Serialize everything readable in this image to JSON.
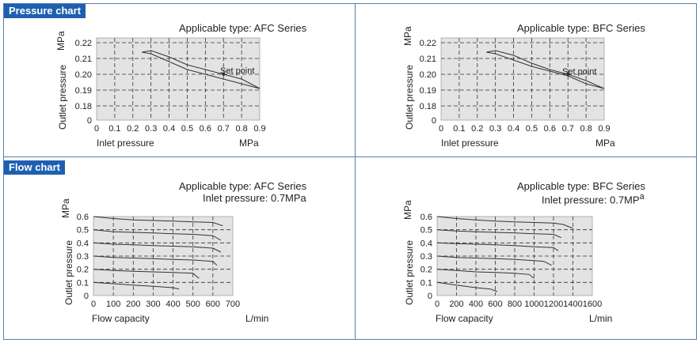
{
  "sections": {
    "pressure_label": "Pressure chart",
    "flow_label": "Flow chart"
  },
  "colors": {
    "section_bg": "#1f5fb0",
    "border": "#5a7ea8",
    "plot_bg": "#e3e3e3",
    "curve": "#333333"
  },
  "chart_data": [
    {
      "type": "line",
      "title": "Applicable type: AFC Series",
      "xlabel": "Inlet pressure",
      "xunit": "MPa",
      "ylabel": "Outlet pressure",
      "yunit": "MPa",
      "xticks": [
        "0",
        "0.1",
        "0.2",
        "0.3",
        "0.4",
        "0.5",
        "0.6",
        "0.7",
        "0.8",
        "0.9"
      ],
      "yticks": [
        "0",
        "0.18",
        "0.19",
        "0.20",
        "0.21",
        "0.22"
      ],
      "xlim": [
        0,
        0.9
      ],
      "annotation": "Set point",
      "series": [
        {
          "x": [
            0.25,
            0.3,
            0.4,
            0.5,
            0.6,
            0.7,
            0.8,
            0.9
          ],
          "y": [
            0.214,
            0.215,
            0.211,
            0.206,
            0.203,
            0.2,
            0.197,
            0.191
          ]
        },
        {
          "x": [
            0.25,
            0.3,
            0.4,
            0.5,
            0.6,
            0.7,
            0.8,
            0.9
          ],
          "y": [
            0.214,
            0.213,
            0.208,
            0.203,
            0.2,
            0.197,
            0.194,
            0.191
          ]
        }
      ]
    },
    {
      "type": "line",
      "title": "Applicable type: BFC Series",
      "xlabel": "Inlet pressure",
      "xunit": "MPa",
      "ylabel": "Outlet pressure",
      "yunit": "MPa",
      "xticks": [
        "0",
        "0.1",
        "0.2",
        "0.3",
        "0.4",
        "0.5",
        "0.6",
        "0.7",
        "0.8",
        "0.9"
      ],
      "yticks": [
        "0",
        "0.18",
        "0.19",
        "0.20",
        "0.21",
        "0.22"
      ],
      "xlim": [
        0,
        0.9
      ],
      "annotation": "Set point",
      "series": [
        {
          "x": [
            0.25,
            0.3,
            0.4,
            0.5,
            0.6,
            0.7,
            0.8,
            0.9
          ],
          "y": [
            0.214,
            0.215,
            0.212,
            0.207,
            0.203,
            0.2,
            0.196,
            0.191
          ]
        },
        {
          "x": [
            0.25,
            0.3,
            0.4,
            0.5,
            0.6,
            0.7,
            0.8,
            0.9
          ],
          "y": [
            0.214,
            0.213,
            0.209,
            0.205,
            0.202,
            0.199,
            0.194,
            0.191
          ]
        }
      ]
    },
    {
      "type": "line",
      "title": "Applicable type: AFC Series",
      "subtitle": "Inlet pressure: 0.7MPa",
      "xlabel": "Flow capacity",
      "xunit": "L/min",
      "ylabel": "Outlet pressure",
      "yunit": "MPa",
      "xticks": [
        "0",
        "100",
        "200",
        "300",
        "400",
        "500",
        "600",
        "700"
      ],
      "yticks": [
        "0",
        "0.1",
        "0.2",
        "0.3",
        "0.4",
        "0.5",
        "0.6"
      ],
      "xlim": [
        0,
        700
      ],
      "ylim": [
        0,
        0.6
      ],
      "series": [
        {
          "x": [
            0,
            100,
            200,
            300,
            400,
            500,
            600,
            650
          ],
          "y": [
            0.6,
            0.585,
            0.575,
            0.57,
            0.565,
            0.56,
            0.555,
            0.53
          ]
        },
        {
          "x": [
            0,
            100,
            200,
            300,
            400,
            500,
            600,
            640
          ],
          "y": [
            0.5,
            0.485,
            0.48,
            0.475,
            0.47,
            0.465,
            0.455,
            0.42
          ]
        },
        {
          "x": [
            0,
            100,
            200,
            300,
            400,
            500,
            600,
            640
          ],
          "y": [
            0.4,
            0.39,
            0.385,
            0.38,
            0.375,
            0.37,
            0.36,
            0.33
          ]
        },
        {
          "x": [
            0,
            100,
            200,
            300,
            400,
            500,
            600,
            620
          ],
          "y": [
            0.3,
            0.29,
            0.285,
            0.28,
            0.275,
            0.27,
            0.26,
            0.23
          ]
        },
        {
          "x": [
            0,
            100,
            200,
            300,
            400,
            500,
            530
          ],
          "y": [
            0.2,
            0.19,
            0.185,
            0.18,
            0.175,
            0.17,
            0.13
          ]
        },
        {
          "x": [
            0,
            100,
            200,
            300,
            400,
            430
          ],
          "y": [
            0.1,
            0.09,
            0.08,
            0.07,
            0.06,
            0.05
          ]
        }
      ]
    },
    {
      "type": "line",
      "title": "Applicable type: BFC Series",
      "subtitle": "Inlet pressure: 0.7MP",
      "subtitle_sup": "a",
      "xlabel": "Flow capacity",
      "xunit": "L/min",
      "ylabel": "Outlet pressure",
      "yunit": "MPa",
      "xticks": [
        "0",
        "200",
        "400",
        "600",
        "800",
        "1000",
        "1200",
        "1400",
        "1600"
      ],
      "yticks": [
        "0",
        "0.1",
        "0.2",
        "0.3",
        "0.4",
        "0.5",
        "0.6"
      ],
      "xlim": [
        0,
        1600
      ],
      "ylim": [
        0,
        0.6
      ],
      "series": [
        {
          "x": [
            0,
            200,
            400,
            600,
            800,
            1000,
            1200,
            1300,
            1400
          ],
          "y": [
            0.6,
            0.585,
            0.575,
            0.565,
            0.56,
            0.555,
            0.55,
            0.54,
            0.51
          ]
        },
        {
          "x": [
            0,
            200,
            400,
            600,
            800,
            1000,
            1200,
            1280
          ],
          "y": [
            0.5,
            0.49,
            0.485,
            0.48,
            0.475,
            0.47,
            0.465,
            0.44
          ]
        },
        {
          "x": [
            0,
            200,
            400,
            600,
            800,
            1000,
            1200,
            1250
          ],
          "y": [
            0.4,
            0.395,
            0.39,
            0.385,
            0.38,
            0.37,
            0.365,
            0.34
          ]
        },
        {
          "x": [
            0,
            200,
            400,
            600,
            800,
            1000,
            1100,
            1180
          ],
          "y": [
            0.3,
            0.29,
            0.285,
            0.28,
            0.275,
            0.265,
            0.26,
            0.23
          ]
        },
        {
          "x": [
            0,
            200,
            400,
            600,
            800,
            950,
            1000
          ],
          "y": [
            0.2,
            0.19,
            0.18,
            0.175,
            0.17,
            0.16,
            0.13
          ]
        },
        {
          "x": [
            0,
            200,
            400,
            550,
            620
          ],
          "y": [
            0.1,
            0.08,
            0.06,
            0.05,
            0.03
          ]
        }
      ]
    }
  ]
}
